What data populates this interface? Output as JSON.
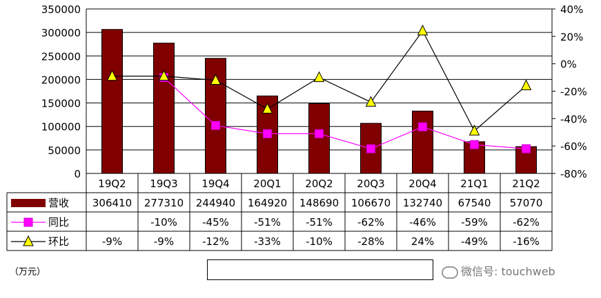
{
  "chart_data": {
    "type": "bar",
    "categories": [
      "19Q2",
      "19Q3",
      "19Q4",
      "20Q1",
      "20Q2",
      "20Q3",
      "20Q4",
      "21Q1",
      "21Q2"
    ],
    "series": [
      {
        "name": "营收",
        "type": "bar",
        "axis": "left",
        "values": [
          306410,
          277310,
          244940,
          164920,
          148690,
          106670,
          132740,
          67540,
          57070
        ],
        "color": "#800000"
      },
      {
        "name": "同比",
        "type": "line",
        "axis": "right",
        "values": [
          null,
          -10,
          -45,
          -51,
          -51,
          -62,
          -46,
          -59,
          -62
        ],
        "color": "#ff00ff"
      },
      {
        "name": "环比",
        "type": "line",
        "axis": "right",
        "values": [
          -9,
          -9,
          -12,
          -33,
          -10,
          -28,
          24,
          -49,
          -16
        ],
        "color": "#000000"
      }
    ],
    "left_axis": {
      "min": 0,
      "max": 350000,
      "ticks": [
        "350000",
        "300000",
        "250000",
        "200000",
        "150000",
        "100000",
        "50000",
        "0"
      ]
    },
    "right_axis": {
      "min": -80,
      "max": 40,
      "ticks": [
        "40%",
        "20%",
        "0%",
        "-20%",
        "-40%",
        "-60%",
        "-80%"
      ]
    },
    "table": {
      "rows": [
        {
          "label": "营收",
          "cells": [
            "306410",
            "277310",
            "244940",
            "164920",
            "148690",
            "106670",
            "132740",
            "67540",
            "57070"
          ]
        },
        {
          "label": "同比",
          "cells": [
            "",
            "-10%",
            "-45%",
            "-51%",
            "-51%",
            "-62%",
            "-46%",
            "-59%",
            "-62%"
          ]
        },
        {
          "label": "环比",
          "cells": [
            "-9%",
            "-9%",
            "-12%",
            "-33%",
            "-10%",
            "-28%",
            "24%",
            "-49%",
            "-16%"
          ]
        }
      ]
    },
    "legend": [
      "营收",
      "同比",
      "环比"
    ],
    "grid": true
  },
  "unit_label": "（万元）",
  "watermark": "微信号: touchweb"
}
